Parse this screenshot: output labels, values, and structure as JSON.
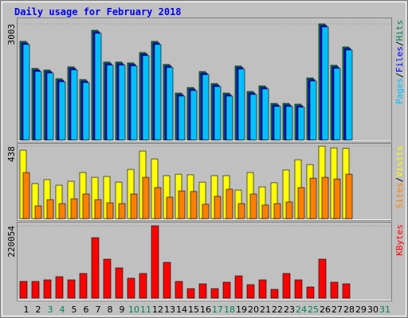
{
  "title": "Daily usage for February 2018",
  "chart_data": [
    {
      "type": "bar",
      "ylim": [
        0,
        3003
      ],
      "yticks": [
        3003
      ],
      "grid": true,
      "legend_separator": "/",
      "series": [
        {
          "name": "Hits",
          "color": "#00805c",
          "values": [
            2550,
            1851,
            1810,
            1584,
            1892,
            1563,
            2838,
            2016,
            2016,
            1995,
            2262,
            2550,
            1954,
            1213,
            1357,
            1769,
            1460,
            1213,
            1913,
            1255,
            1399,
            946,
            946,
            926,
            1604,
            3003,
            1933,
            2406,
            null,
            null,
            null
          ]
        },
        {
          "name": "Files",
          "color": "#0000ff",
          "values": [
            2510,
            1811,
            1770,
            1544,
            1852,
            1523,
            2798,
            1976,
            1976,
            1955,
            2222,
            2510,
            1914,
            1173,
            1317,
            1729,
            1420,
            1173,
            1873,
            1215,
            1359,
            906,
            906,
            886,
            1564,
            2963,
            1893,
            2366,
            null,
            null,
            null
          ]
        },
        {
          "name": "Pages",
          "color": "#00c0ff",
          "values": [
            2470,
            1771,
            1730,
            1504,
            1812,
            1483,
            2758,
            1936,
            1936,
            1915,
            2182,
            2470,
            1874,
            1133,
            1277,
            1689,
            1380,
            1133,
            1833,
            1175,
            1319,
            866,
            866,
            846,
            1524,
            2923,
            1853,
            2326,
            null,
            null,
            null
          ]
        }
      ]
    },
    {
      "type": "bar",
      "ylim": [
        0,
        438
      ],
      "yticks": [
        438
      ],
      "grid": true,
      "legend_separator": "/",
      "series": [
        {
          "name": "Visits",
          "color": "#ffff00",
          "values": [
            414,
            212,
            236,
            202,
            226,
            279,
            250,
            255,
            221,
            298,
            409,
            361,
            260,
            269,
            265,
            221,
            260,
            260,
            173,
            279,
            192,
            217,
            294,
            356,
            327,
            438,
            428,
            425,
            null,
            null,
            null
          ]
        },
        {
          "name": "Sites",
          "color": "#ff8000",
          "values": [
            279,
            77,
            115,
            91,
            120,
            149,
            115,
            96,
            91,
            149,
            250,
            188,
            130,
            168,
            164,
            87,
            135,
            178,
            91,
            149,
            82,
            91,
            101,
            188,
            245,
            250,
            240,
            269,
            null,
            null,
            null
          ]
        }
      ]
    },
    {
      "type": "bar",
      "ylim": [
        0,
        220054
      ],
      "yticks": [
        220054
      ],
      "grid": true,
      "legend_separator": "/",
      "categories": [
        "1",
        "2",
        "3",
        "4",
        "5",
        "6",
        "7",
        "8",
        "9",
        "10",
        "11",
        "12",
        "13",
        "14",
        "15",
        "16",
        "17",
        "18",
        "19",
        "20",
        "21",
        "22",
        "23",
        "24",
        "25",
        "26",
        "27",
        "28",
        "29",
        "30",
        "31"
      ],
      "category_colors": [
        "#000000",
        "#000000",
        "#00805c",
        "#00805c",
        "#000000",
        "#000000",
        "#000000",
        "#000000",
        "#000000",
        "#00805c",
        "#00805c",
        "#000000",
        "#000000",
        "#000000",
        "#000000",
        "#000000",
        "#00805c",
        "#00805c",
        "#000000",
        "#000000",
        "#000000",
        "#000000",
        "#000000",
        "#00805c",
        "#00805c",
        "#000000",
        "#000000",
        "#000000",
        "#000000",
        "#000000",
        "#00805c"
      ],
      "series": [
        {
          "name": "KBytes",
          "color": "#ff0000",
          "values": [
            50800,
            50800,
            55600,
            65300,
            55600,
            75000,
            183800,
            118500,
            91900,
            60500,
            75000,
            220054,
            108800,
            50800,
            29000,
            43500,
            29000,
            48400,
            67700,
            41100,
            55600,
            26600,
            75000,
            55600,
            33900,
            118500,
            48400,
            43500,
            null,
            null,
            null
          ]
        }
      ]
    }
  ]
}
